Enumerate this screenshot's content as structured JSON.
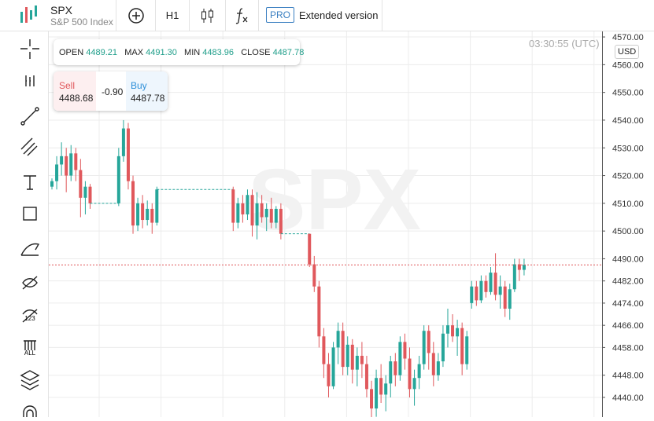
{
  "header": {
    "symbol": "SPX",
    "name": "S&P 500 Index",
    "timeframe": "H1",
    "pro_badge": "PRO",
    "extended": "Extended version"
  },
  "toolbar": {
    "icon_labels": [
      "123",
      "ALL"
    ]
  },
  "ohlc_box": {
    "open_label": "OPEN",
    "open": "4489.21",
    "max_label": "MAX",
    "max": "4491.30",
    "min_label": "MIN",
    "min": "4483.96",
    "close_label": "CLOSE",
    "close": "4487.78"
  },
  "trade": {
    "sell_label": "Sell",
    "sell": "4488.68",
    "spread": "-0.90",
    "buy_label": "Buy",
    "buy": "4487.78"
  },
  "clock": "03:30:55 (UTC)",
  "currency": "USD",
  "chart_data": {
    "type": "candlestick",
    "ylim": [
      4432.9,
      4572
    ],
    "yticks": [
      {
        "value": 4570,
        "label": "4570.00"
      },
      {
        "value": 4560,
        "label": "4560.00"
      },
      {
        "value": 4550,
        "label": "4550.00"
      },
      {
        "value": 4540,
        "label": "4540.00"
      },
      {
        "value": 4530,
        "label": "4530.00"
      },
      {
        "value": 4520,
        "label": "4520.00"
      },
      {
        "value": 4510,
        "label": "4510.00"
      },
      {
        "value": 4500,
        "label": "4500.00"
      },
      {
        "value": 4490,
        "label": "4490.00"
      },
      {
        "value": 4482,
        "label": "4482.00"
      },
      {
        "value": 4474,
        "label": "4474.00"
      },
      {
        "value": 4466,
        "label": "4466.00"
      },
      {
        "value": 4458,
        "label": "4458.00"
      },
      {
        "value": 4448,
        "label": "4448.00"
      },
      {
        "value": 4440,
        "label": "4440.00"
      }
    ],
    "grid": true,
    "up_color": "#26a69a",
    "down_color": "#e0585c",
    "ohlc": [
      [
        4516,
        4519,
        4515,
        4518
      ],
      [
        4518,
        4527,
        4515,
        4524
      ],
      [
        4524,
        4532,
        4520,
        4527
      ],
      [
        4527,
        4530,
        4514,
        4520
      ],
      [
        4520,
        4531,
        4518,
        4528
      ],
      [
        4528,
        4530,
        4518,
        4522
      ],
      [
        4522,
        4526,
        4505,
        4512
      ],
      [
        4512,
        4518,
        4506,
        4516
      ],
      [
        4516,
        4517,
        4508,
        4510
      ],
      null,
      null,
      null,
      null,
      null,
      [
        4510,
        4530,
        4509,
        4527
      ],
      [
        4527,
        4540,
        4525,
        4537
      ],
      [
        4537,
        4539,
        4515,
        4518
      ],
      [
        4518,
        4520,
        4499,
        4502
      ],
      [
        4502,
        4512,
        4500,
        4510
      ],
      [
        4510,
        4513,
        4501,
        4504
      ],
      [
        4504,
        4511,
        4502,
        4508
      ],
      [
        4508,
        4510,
        4499,
        4503
      ],
      [
        4503,
        4516,
        4502,
        4515
      ],
      null,
      null,
      null,
      null,
      null,
      null,
      null,
      null,
      null,
      null,
      null,
      null,
      null,
      null,
      null,
      [
        4515,
        4516,
        4500,
        4503
      ],
      [
        4503,
        4512,
        4501,
        4510
      ],
      [
        4510,
        4513,
        4503,
        4506
      ],
      [
        4506,
        4515,
        4504,
        4513
      ],
      [
        4513,
        4515,
        4498,
        4502
      ],
      [
        4502,
        4514,
        4497,
        4510
      ],
      [
        4510,
        4513,
        4503,
        4505
      ],
      [
        4505,
        4510,
        4500,
        4508
      ],
      [
        4508,
        4512,
        4501,
        4503
      ],
      [
        4503,
        4509,
        4501,
        4508
      ],
      [
        4508,
        4510,
        4497,
        4499
      ],
      null,
      null,
      null,
      null,
      null,
      [
        4499,
        4499,
        4487,
        4488
      ],
      [
        4488,
        4491,
        4478,
        4480
      ],
      [
        4480,
        4482,
        4458,
        4462
      ],
      [
        4462,
        4465,
        4447,
        4452
      ],
      [
        4452,
        4456,
        4440,
        4444
      ],
      [
        4444,
        4460,
        4443,
        4458
      ],
      [
        4458,
        4467,
        4452,
        4464
      ],
      [
        4464,
        4467,
        4448,
        4451
      ],
      [
        4451,
        4462,
        4448,
        4459
      ],
      [
        4459,
        4461,
        4445,
        4450
      ],
      [
        4450,
        4458,
        4444,
        4455
      ],
      [
        4455,
        4460,
        4447,
        4452
      ],
      [
        4452,
        4455,
        4440,
        4443
      ],
      [
        4443,
        4446,
        4432,
        4436
      ],
      [
        4436,
        4450,
        4433,
        4447
      ],
      [
        4447,
        4452,
        4438,
        4441
      ],
      [
        4441,
        4448,
        4435,
        4445
      ],
      [
        4445,
        4455,
        4440,
        4453
      ],
      [
        4453,
        4456,
        4444,
        4448
      ],
      [
        4448,
        4462,
        4446,
        4460
      ],
      [
        4460,
        4463,
        4450,
        4454
      ],
      [
        4454,
        4458,
        4440,
        4443
      ],
      [
        4443,
        4450,
        4437,
        4447
      ],
      [
        4447,
        4455,
        4443,
        4452
      ],
      [
        4452,
        4466,
        4450,
        4464
      ],
      [
        4464,
        4466,
        4450,
        4456
      ],
      [
        4456,
        4460,
        4444,
        4448
      ],
      [
        4448,
        4456,
        4446,
        4453
      ],
      [
        4453,
        4466,
        4451,
        4463
      ],
      [
        4463,
        4472,
        4458,
        4466
      ],
      [
        4466,
        4470,
        4460,
        4462
      ],
      [
        4462,
        4468,
        4455,
        4465
      ],
      [
        4465,
        4467,
        4448,
        4452
      ],
      [
        4452,
        4464,
        4450,
        4462
      ],
      [
        4474,
        4482,
        4472,
        4480
      ],
      [
        4480,
        4482,
        4473,
        4475
      ],
      [
        4475,
        4484,
        4474,
        4482
      ],
      [
        4482,
        4484,
        4476,
        4478
      ],
      [
        4478,
        4487,
        4477,
        4485
      ],
      [
        4485,
        4492,
        4475,
        4477
      ],
      [
        4477,
        4484,
        4472,
        4480
      ],
      [
        4480,
        4482,
        4469,
        4472
      ],
      [
        4472,
        4481,
        4468,
        4479
      ],
      [
        4479,
        4490,
        4478,
        4488
      ],
      [
        4488,
        4490,
        4482,
        4486
      ],
      [
        4486,
        4490,
        4484,
        4487.78
      ]
    ]
  }
}
